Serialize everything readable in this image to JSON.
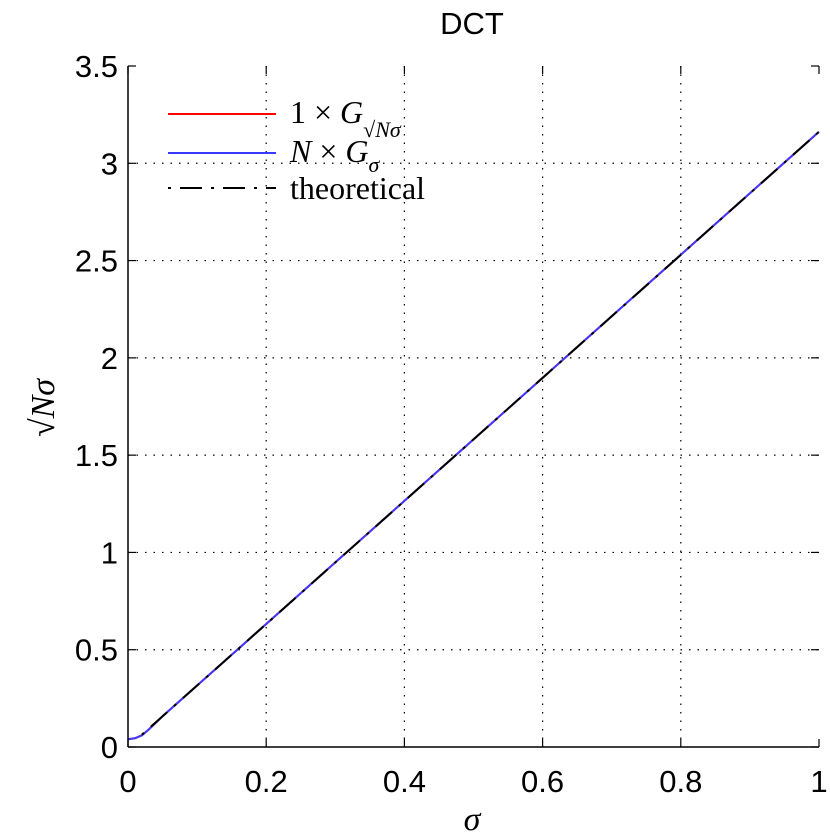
{
  "chart_data": {
    "type": "line",
    "title": "DCT",
    "xlabel": "σ",
    "ylabel": "√Nσ",
    "xlim": [
      0,
      1
    ],
    "ylim": [
      0,
      3.5
    ],
    "x_ticks": [
      "0",
      "0.2",
      "0.4",
      "0.6",
      "0.8",
      "1"
    ],
    "y_ticks": [
      "0",
      "0.5",
      "1",
      "1.5",
      "2",
      "2.5",
      "3",
      "3.5"
    ],
    "grid": true,
    "legend_position": "top-left",
    "series": [
      {
        "name": "1 × G√Nσ",
        "color": "#ff0000",
        "style": "solid",
        "x": [
          0,
          0.01,
          0.02,
          0.03,
          0.05,
          0.1,
          0.2,
          0.3,
          0.4,
          0.5,
          0.6,
          0.7,
          0.8,
          0.9,
          1.0
        ],
        "y": [
          0.04,
          0.045,
          0.06,
          0.09,
          0.158,
          0.316,
          0.632,
          0.949,
          1.265,
          1.581,
          1.897,
          2.214,
          2.53,
          2.846,
          3.162
        ]
      },
      {
        "name": "N × Gσ",
        "color": "#3a3aff",
        "style": "solid",
        "x": [
          0,
          0.01,
          0.02,
          0.03,
          0.05,
          0.1,
          0.2,
          0.3,
          0.4,
          0.5,
          0.6,
          0.7,
          0.8,
          0.9,
          1.0
        ],
        "y": [
          0.04,
          0.045,
          0.06,
          0.09,
          0.158,
          0.316,
          0.632,
          0.949,
          1.265,
          1.581,
          1.897,
          2.214,
          2.53,
          2.846,
          3.162
        ]
      },
      {
        "name": "theoretical",
        "color": "#000000",
        "style": "dashdot",
        "x": [
          0.02,
          1.0
        ],
        "y": [
          0.063,
          3.162
        ]
      }
    ]
  }
}
